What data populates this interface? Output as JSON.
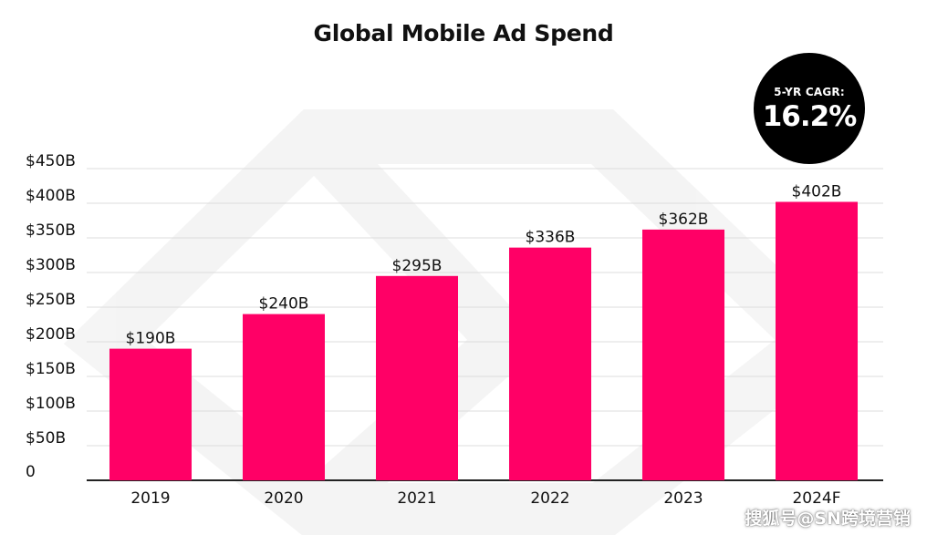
{
  "chart_data": {
    "type": "bar",
    "title": "Global Mobile Ad Spend",
    "categories": [
      "2019",
      "2020",
      "2021",
      "2022",
      "2023",
      "2024F"
    ],
    "values": [
      190,
      240,
      295,
      336,
      362,
      402
    ],
    "data_labels": [
      "$190B",
      "$240B",
      "$295B",
      "$336B",
      "$362B",
      "$402B"
    ],
    "y_ticks": [
      0,
      50,
      100,
      150,
      200,
      250,
      300,
      350,
      400,
      450
    ],
    "y_tick_labels": [
      "0",
      "$50B",
      "$100B",
      "$150B",
      "$200B",
      "$250B",
      "$300B",
      "$350B",
      "$400B",
      "$450B"
    ],
    "ylim": [
      0,
      450
    ],
    "grid": true,
    "xlabel": "",
    "ylabel": "",
    "bar_color": "#FF0066"
  },
  "badge": {
    "label": "5-YR CAGR:",
    "value": "16.2%"
  },
  "watermark": "搜狐号@SN跨境营销",
  "colors": {
    "accent": "#FF0066",
    "gridline": "#dddddd",
    "axis": "#222222",
    "text": "#111111"
  }
}
